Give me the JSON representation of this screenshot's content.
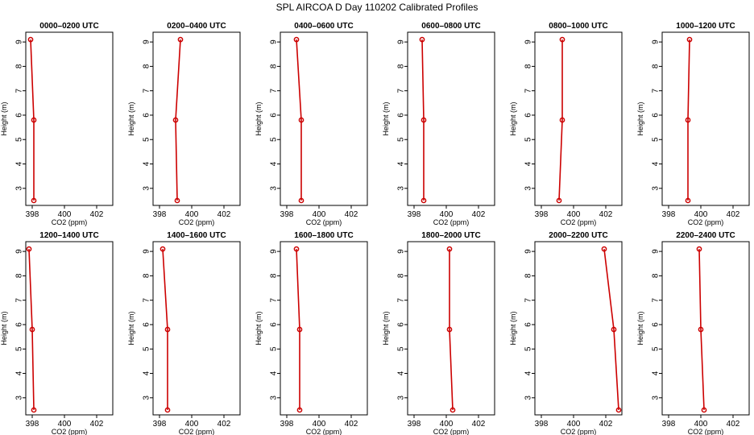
{
  "figure": {
    "title": "SPL AIRCOA D  Day 110202  Calibrated Profiles"
  },
  "chart_data": {
    "type": "line",
    "title": "SPL AIRCOA D  Day 110202  Calibrated Profiles",
    "xlabel": "CO2 (ppm)",
    "ylabel": "Height (m)",
    "xlim": [
      397.6,
      403.0
    ],
    "ylim": [
      2.3,
      9.4
    ],
    "xticks": [
      398,
      400,
      402
    ],
    "yticks": [
      3,
      4,
      5,
      6,
      7,
      8,
      9
    ],
    "heights": [
      9.1,
      5.8,
      2.5
    ],
    "colors": {
      "series": "#cc0000",
      "axis": "#000000"
    },
    "panels": [
      {
        "title": "0000–0200 UTC",
        "co2": [
          397.9,
          398.1,
          398.1
        ]
      },
      {
        "title": "0200–0400 UTC",
        "co2": [
          399.3,
          399.0,
          399.1
        ]
      },
      {
        "title": "0400–0600 UTC",
        "co2": [
          398.6,
          398.9,
          398.9
        ]
      },
      {
        "title": "0600–0800 UTC",
        "co2": [
          398.5,
          398.6,
          398.6
        ]
      },
      {
        "title": "0800–1000 UTC",
        "co2": [
          399.3,
          399.3,
          399.1
        ]
      },
      {
        "title": "1000–1200 UTC",
        "co2": [
          399.3,
          399.2,
          399.2
        ]
      },
      {
        "title": "1200–1400 UTC",
        "co2": [
          397.8,
          398.0,
          398.1
        ]
      },
      {
        "title": "1400–1600 UTC",
        "co2": [
          398.2,
          398.5,
          398.5
        ]
      },
      {
        "title": "1600–1800 UTC",
        "co2": [
          398.6,
          398.8,
          398.8
        ]
      },
      {
        "title": "1800–2000 UTC",
        "co2": [
          400.2,
          400.2,
          400.4
        ]
      },
      {
        "title": "2000–2200 UTC",
        "co2": [
          401.9,
          402.5,
          402.8
        ]
      },
      {
        "title": "2200–2400 UTC",
        "co2": [
          399.9,
          400.0,
          400.2
        ]
      }
    ]
  }
}
